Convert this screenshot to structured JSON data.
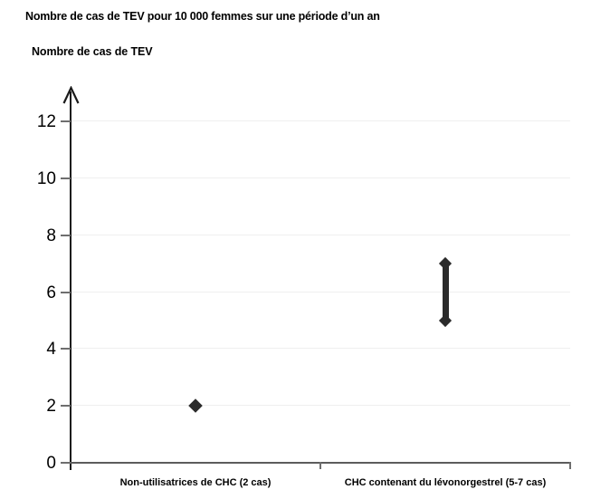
{
  "chart_data": {
    "type": "scatter",
    "title": "Nombre de cas de TEV pour 10 000 femmes sur une période d’un an",
    "ylabel": "Nombre de cas de TEV",
    "xlabel": "",
    "ylim": [
      0,
      13
    ],
    "yticks": [
      0,
      2,
      4,
      6,
      8,
      10,
      12
    ],
    "grid": true,
    "legend": false,
    "categories": [
      "Non-utilisatrices de CHC (2 cas)",
      "CHC contenant du lévonorgestrel (5-7 cas)"
    ],
    "values": [
      {
        "category": 0,
        "point": 2
      },
      {
        "category": 1,
        "range": [
          5,
          7
        ]
      }
    ],
    "colors": {
      "marker": "#2b2b2b",
      "axis": "#1a1a1a",
      "axis_secondary": "#6e6e6e",
      "grid": "#efefef",
      "text": "#000000"
    }
  }
}
